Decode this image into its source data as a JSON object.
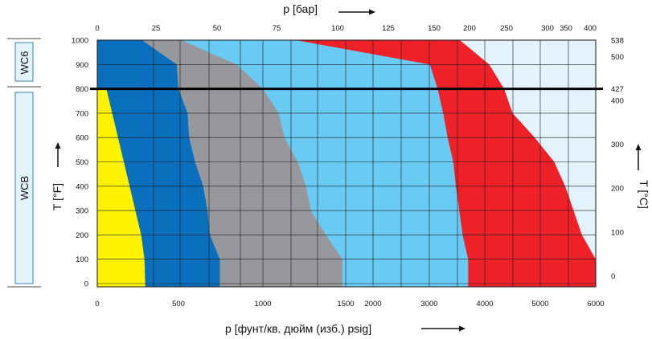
{
  "chart_data": {
    "type": "area",
    "title": "",
    "xlabel": "p [фунт/кв. дюйм (изб.) psig]",
    "xlabel_top": "p [бар]",
    "ylabel": "T [°F]",
    "ylabel_right": "T [°C]",
    "ylim": [
      -20,
      1000
    ],
    "y_ticks": [
      "0",
      "100",
      "200",
      "300",
      "400",
      "500",
      "600",
      "700",
      "800",
      "900",
      "1000"
    ],
    "x_bottom_ticks": [
      "0",
      "500",
      "1000",
      "1500",
      "2000",
      "3000",
      "4000",
      "5000",
      "6000"
    ],
    "x_top_ticks": [
      "0",
      "25",
      "50",
      "75",
      "100",
      "125",
      "150",
      "200",
      "250",
      "300",
      "350",
      "400"
    ],
    "y_right_ticks": [
      "538",
      "500",
      "427",
      "400",
      "300",
      "200",
      "100",
      "0"
    ],
    "grades": [
      {
        "name": "WC6",
        "t_from": 800,
        "t_to": 1000
      },
      {
        "name": "WCB",
        "t_from": -20,
        "t_to": 800
      }
    ],
    "boundary_line_t": 800,
    "colors": {
      "yellow": "#fff200",
      "dark_blue": "#0a6fbd",
      "gray": "#97989b",
      "light_blue": "#69cbf4",
      "red": "#ee2128",
      "pale": "#e2f3fb",
      "grade_box": "#e2f3fb"
    },
    "series": [
      {
        "color": "#fff200",
        "points": [
          [
            -20,
            290
          ],
          [
            100,
            285
          ],
          [
            200,
            265
          ],
          [
            300,
            230
          ],
          [
            400,
            195
          ],
          [
            500,
            160
          ],
          [
            600,
            125
          ],
          [
            700,
            90
          ],
          [
            800,
            55
          ]
        ]
      },
      {
        "color": "#0a6fbd",
        "points": [
          [
            -20,
            740
          ],
          [
            100,
            740
          ],
          [
            200,
            680
          ],
          [
            300,
            665
          ],
          [
            400,
            640
          ],
          [
            500,
            590
          ],
          [
            600,
            555
          ],
          [
            700,
            545
          ],
          [
            800,
            490
          ],
          [
            900,
            480
          ],
          [
            1000,
            270
          ]
        ]
      },
      {
        "color": "#97989b",
        "points": [
          [
            -20,
            1480
          ],
          [
            100,
            1480
          ],
          [
            200,
            1380
          ],
          [
            300,
            1290
          ],
          [
            400,
            1260
          ],
          [
            500,
            1210
          ],
          [
            600,
            1130
          ],
          [
            700,
            1095
          ],
          [
            800,
            1000
          ],
          [
            900,
            840
          ],
          [
            1000,
            510
          ]
        ]
      },
      {
        "color": "#69cbf4",
        "points": [
          [
            -20,
            3700
          ],
          [
            100,
            3700
          ],
          [
            200,
            3600
          ],
          [
            300,
            3540
          ],
          [
            400,
            3480
          ],
          [
            500,
            3430
          ],
          [
            600,
            3330
          ],
          [
            700,
            3250
          ],
          [
            800,
            3150
          ],
          [
            900,
            3010
          ],
          [
            1000,
            1200
          ]
        ]
      },
      {
        "color": "#ee2128",
        "points": [
          [
            -20,
            6000
          ],
          [
            100,
            6000
          ],
          [
            200,
            5750
          ],
          [
            300,
            5600
          ],
          [
            400,
            5450
          ],
          [
            500,
            5250
          ],
          [
            600,
            4900
          ],
          [
            700,
            4500
          ],
          [
            800,
            4350
          ],
          [
            900,
            4080
          ],
          [
            1000,
            3550
          ]
        ]
      }
    ]
  }
}
